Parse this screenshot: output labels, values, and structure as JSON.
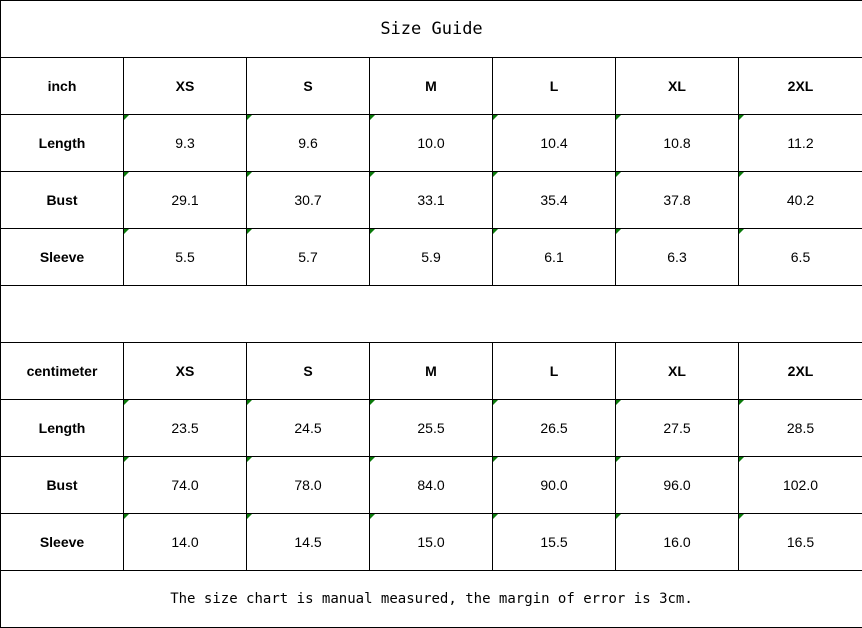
{
  "title": "Size Guide",
  "note": "The size chart is manual measured, the margin of error is 3cm.",
  "indicator_color": "#0a7a0a",
  "tables": [
    {
      "unit": "inch",
      "sizes": [
        "XS",
        "S",
        "M",
        "L",
        "XL",
        "2XL"
      ],
      "rows": [
        {
          "label": "Length",
          "values": [
            "9.3",
            "9.6",
            "10.0",
            "10.4",
            "10.8",
            "11.2"
          ]
        },
        {
          "label": "Bust",
          "values": [
            "29.1",
            "30.7",
            "33.1",
            "35.4",
            "37.8",
            "40.2"
          ]
        },
        {
          "label": "Sleeve",
          "values": [
            "5.5",
            "5.7",
            "5.9",
            "6.1",
            "6.3",
            "6.5"
          ]
        }
      ]
    },
    {
      "unit": "centimeter",
      "sizes": [
        "XS",
        "S",
        "M",
        "L",
        "XL",
        "2XL"
      ],
      "rows": [
        {
          "label": "Length",
          "values": [
            "23.5",
            "24.5",
            "25.5",
            "26.5",
            "27.5",
            "28.5"
          ]
        },
        {
          "label": "Bust",
          "values": [
            "74.0",
            "78.0",
            "84.0",
            "90.0",
            "96.0",
            "102.0"
          ]
        },
        {
          "label": "Sleeve",
          "values": [
            "14.0",
            "14.5",
            "15.0",
            "15.5",
            "16.0",
            "16.5"
          ]
        }
      ]
    }
  ]
}
